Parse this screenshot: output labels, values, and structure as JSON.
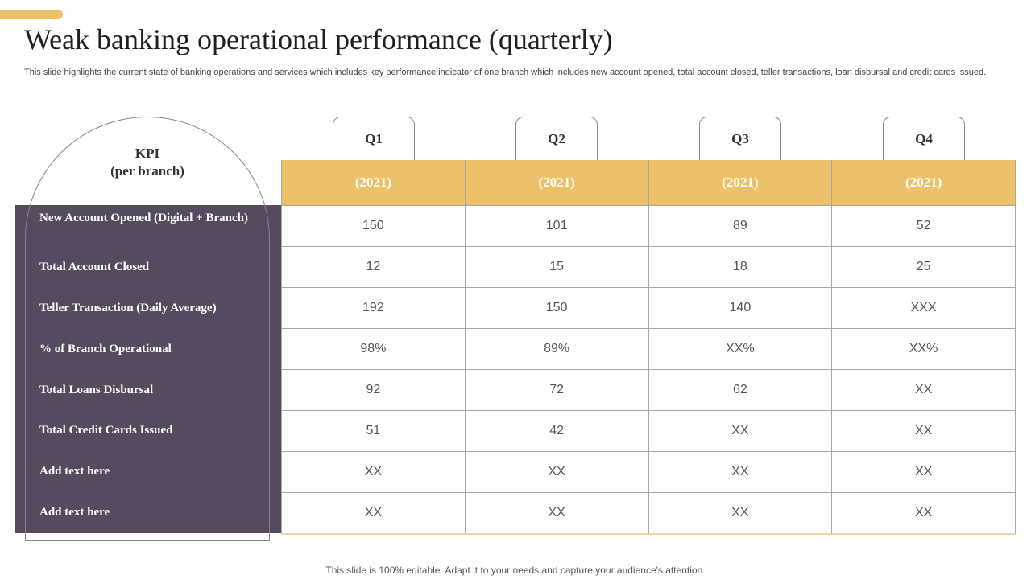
{
  "slide": {
    "title": "Weak banking operational performance (quarterly)",
    "subtitle": "This slide highlights the current state of banking operations and services which includes key performance indicator of one branch which includes new account opened, total account closed, teller transactions, loan disbursal and credit cards issued.",
    "footer": "This slide is 100% editable. Adapt it to your needs and capture your audience's attention.",
    "colors": {
      "accent": "#ecc16a",
      "panel": "#564a5f"
    }
  },
  "table": {
    "kpi_header": [
      "KPI",
      "(per branch)"
    ],
    "quarters": [
      "Q1",
      "Q2",
      "Q3",
      "Q4"
    ],
    "years": [
      "(2021)",
      "(2021)",
      "(2021)",
      "(2021)"
    ],
    "rows": [
      {
        "label": "New Account  Opened (Digital + Branch)",
        "values": [
          "150",
          "101",
          "89",
          "52"
        ]
      },
      {
        "label": "Total Account  Closed",
        "values": [
          "12",
          "15",
          "18",
          "25"
        ]
      },
      {
        "label": "Teller Transaction  (Daily Average)",
        "values": [
          "192",
          "150",
          "140",
          "XXX"
        ]
      },
      {
        "label": "% of Branch  Operational",
        "values": [
          "98%",
          "89%",
          "XX%",
          "XX%"
        ]
      },
      {
        "label": "Total Loans Disbursal",
        "values": [
          "92",
          "72",
          "62",
          "XX"
        ]
      },
      {
        "label": "Total Credit Cards  Issued",
        "values": [
          "51",
          "42",
          "XX",
          "XX"
        ]
      },
      {
        "label": "Add  text here",
        "values": [
          "XX",
          "XX",
          "XX",
          "XX"
        ]
      },
      {
        "label": "Add  text here",
        "values": [
          "XX",
          "XX",
          "XX",
          "XX"
        ]
      }
    ]
  }
}
